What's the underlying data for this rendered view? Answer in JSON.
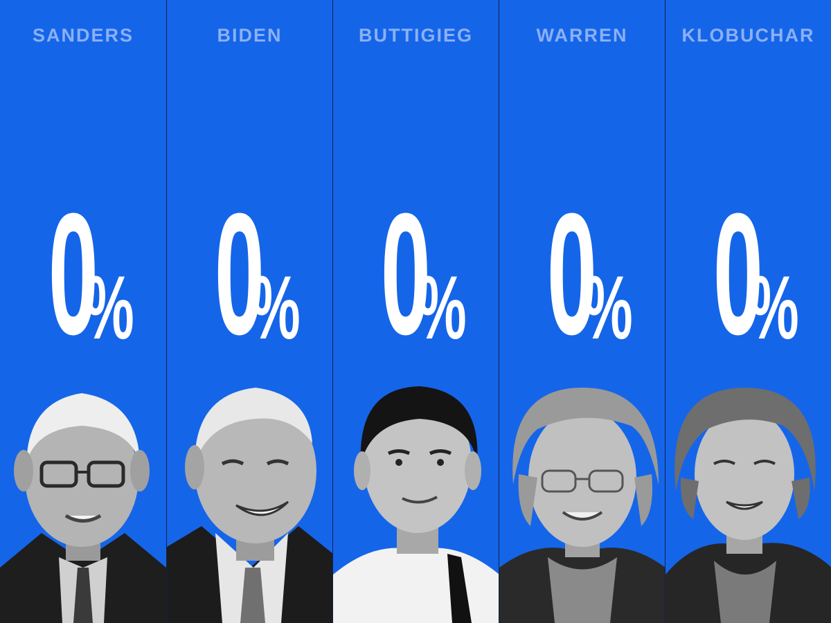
{
  "candidates": [
    {
      "name": "SANDERS",
      "value": "0",
      "unit": "%",
      "percent": 0
    },
    {
      "name": "BIDEN",
      "value": "0",
      "unit": "%",
      "percent": 0
    },
    {
      "name": "BUTTIGIEG",
      "value": "0",
      "unit": "%",
      "percent": 0
    },
    {
      "name": "WARREN",
      "value": "0",
      "unit": "%",
      "percent": 0
    },
    {
      "name": "KLOBUCHAR",
      "value": "0",
      "unit": "%",
      "percent": 0
    }
  ],
  "colors": {
    "background": "#1565e9",
    "name_text": "#8bb0f5",
    "value_text": "#ffffff",
    "divider": "#12224a"
  }
}
